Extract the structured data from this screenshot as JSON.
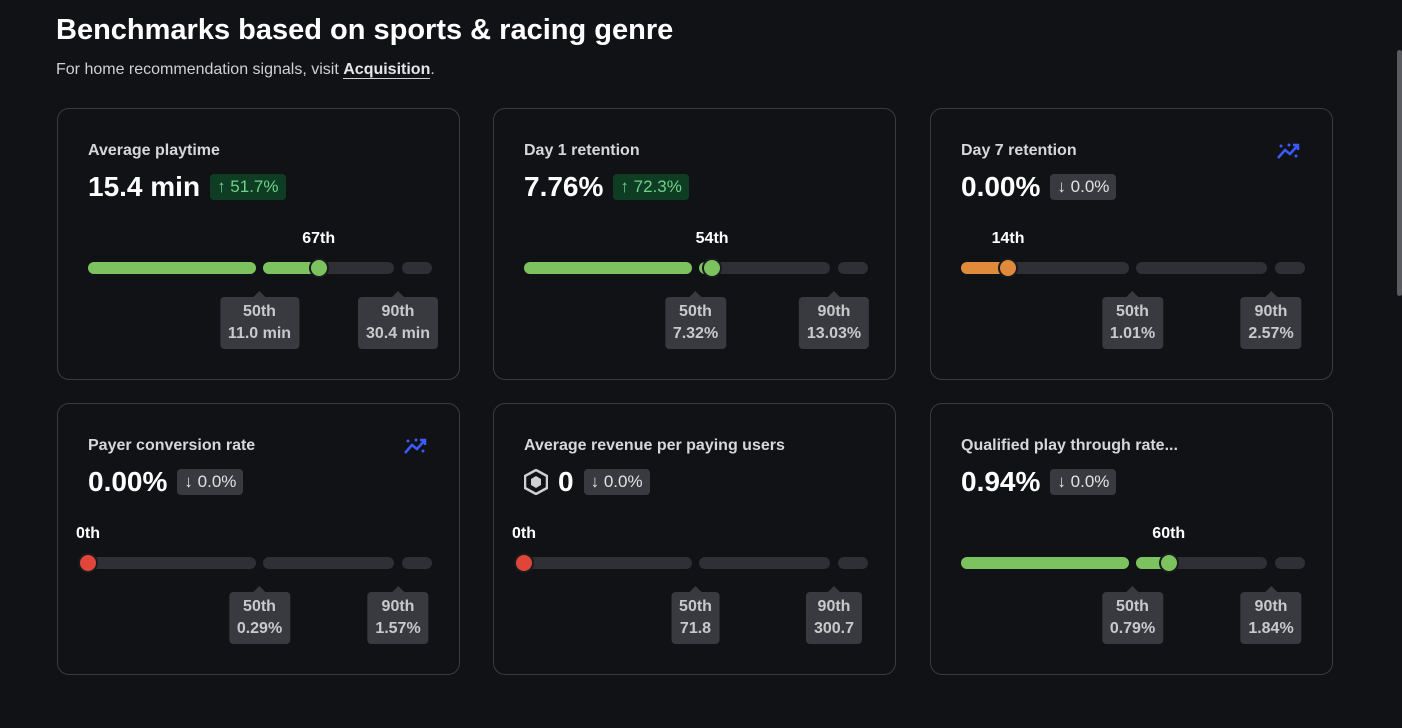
{
  "header": {
    "title": "Benchmarks based on sports & racing genre",
    "subtitle": "For home recommendation signals, visit",
    "link": "Acquisition",
    "end": "."
  },
  "cards": [
    {
      "title": "Average playtime",
      "value": "15.4 min",
      "change": "51.7%",
      "trend": "up",
      "color": "#7cc35f",
      "percentile": {
        "value": 67,
        "label": "67th"
      },
      "p50": {
        "label": "50th",
        "value": "11.0 min"
      },
      "p90": {
        "label": "90th",
        "value": "30.4 min"
      }
    },
    {
      "title": "Day 1 retention",
      "value": "7.76%",
      "change": "72.3%",
      "trend": "up",
      "color": "#7cc35f",
      "percentile": {
        "value": 54,
        "label": "54th"
      },
      "p50": {
        "label": "50th",
        "value": "7.32%"
      },
      "p90": {
        "label": "90th",
        "value": "13.03%"
      }
    },
    {
      "title": "Day 7 retention",
      "value": "0.00%",
      "change": "0.0%",
      "trend": "down",
      "trend_icon": true,
      "color": "#e08a3c",
      "percentile": {
        "value": 14,
        "label": "14th"
      },
      "p50": {
        "label": "50th",
        "value": "1.01%"
      },
      "p90": {
        "label": "90th",
        "value": "2.57%"
      }
    },
    {
      "title": "Payer conversion rate",
      "value": "0.00%",
      "change": "0.0%",
      "trend": "down",
      "trend_icon": true,
      "color": "#e0453a",
      "percentile": {
        "value": 0,
        "label": "0th"
      },
      "p50": {
        "label": "50th",
        "value": "0.29%"
      },
      "p90": {
        "label": "90th",
        "value": "1.57%"
      }
    },
    {
      "title": "Average revenue per paying users",
      "value": "0",
      "currency_icon": true,
      "change": "0.0%",
      "trend": "down",
      "color": "#e0453a",
      "percentile": {
        "value": 0,
        "label": "0th"
      },
      "p50": {
        "label": "50th",
        "value": "71.8"
      },
      "p90": {
        "label": "90th",
        "value": "300.7"
      }
    },
    {
      "title": "Qualified play through rate...",
      "value": "0.94%",
      "change": "0.0%",
      "trend": "down",
      "color": "#7cc35f",
      "percentile": {
        "value": 60,
        "label": "60th"
      },
      "p50": {
        "label": "50th",
        "value": "0.79%"
      },
      "p90": {
        "label": "90th",
        "value": "1.84%"
      }
    }
  ]
}
